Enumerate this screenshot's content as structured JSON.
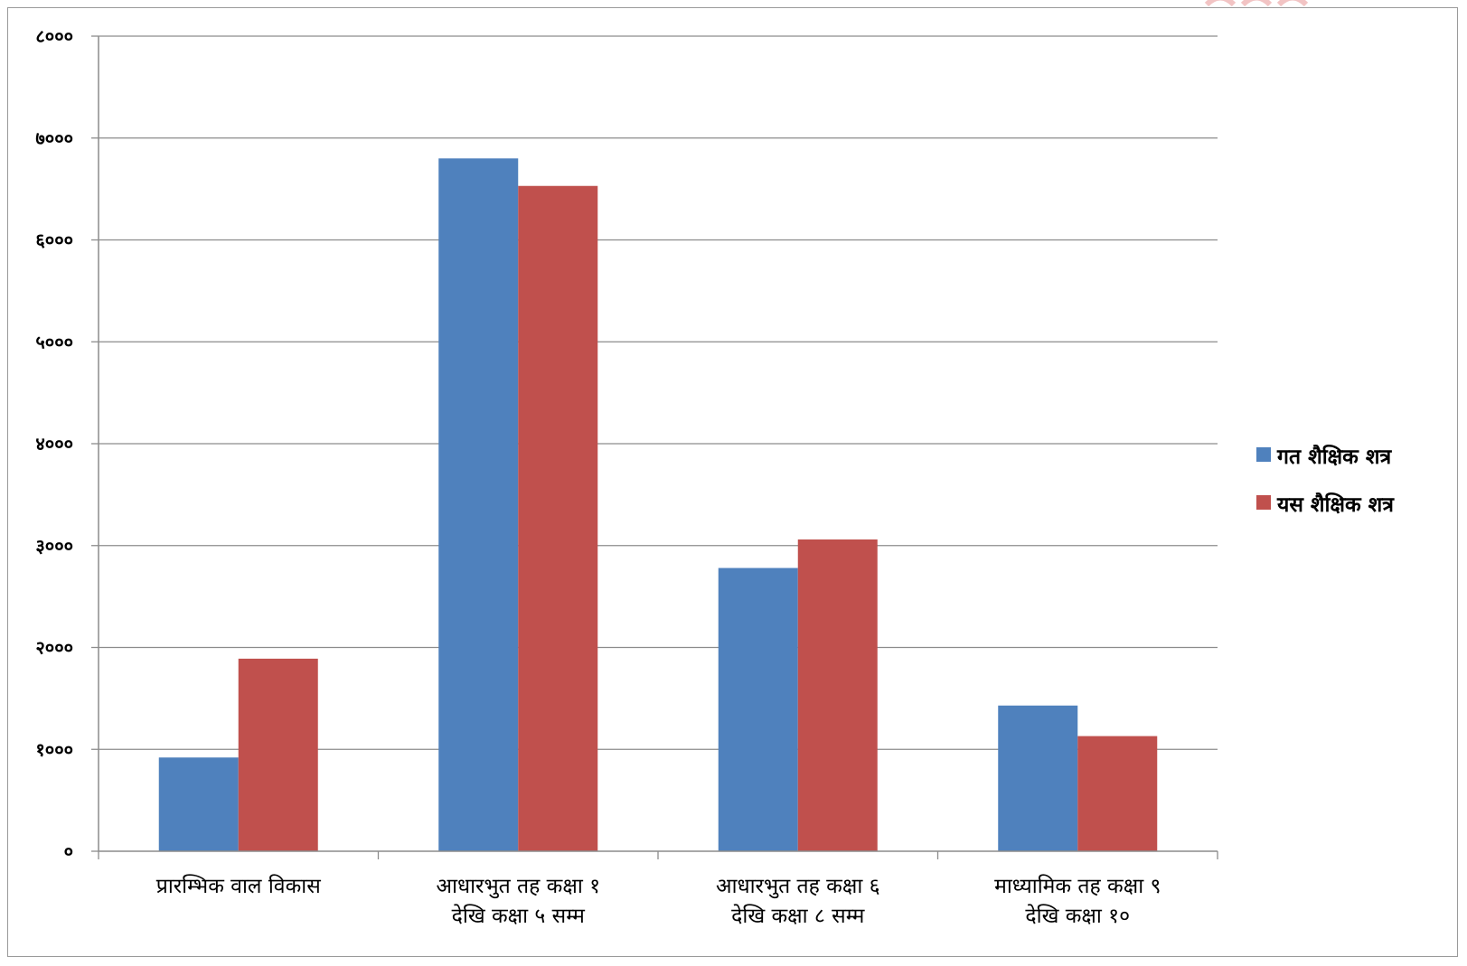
{
  "chart_data": {
    "type": "bar",
    "title": "",
    "xlabel": "",
    "ylabel": "",
    "ylim": [
      0,
      8000
    ],
    "yticks": [
      0,
      1000,
      2000,
      3000,
      4000,
      5000,
      6000,
      7000,
      8000
    ],
    "ytick_labels": [
      "०",
      "१०००",
      "२०००",
      "३०००",
      "४०००",
      "५०००",
      "६०००",
      "७०००",
      "८०००"
    ],
    "categories": [
      [
        "प्रारम्भिक वाल विकास"
      ],
      [
        "आधारभुत तह कक्षा १",
        "देखि कक्षा ५ सम्म"
      ],
      [
        "आधारभुत तह कक्षा ६",
        "देखि कक्षा ८ सम्म"
      ],
      [
        "माध्यामिक तह कक्षा ९",
        "देखि कक्षा १०"
      ]
    ],
    "series": [
      {
        "name": "गत शैक्षिक शत्र",
        "color": "#4f81bd",
        "values": [
          920,
          6800,
          2780,
          1430
        ]
      },
      {
        "name": "यस शैक्षिक शत्र",
        "color": "#c0504d",
        "values": [
          1890,
          6530,
          3060,
          1130
        ]
      }
    ],
    "grid": true,
    "legend_position": "right"
  }
}
